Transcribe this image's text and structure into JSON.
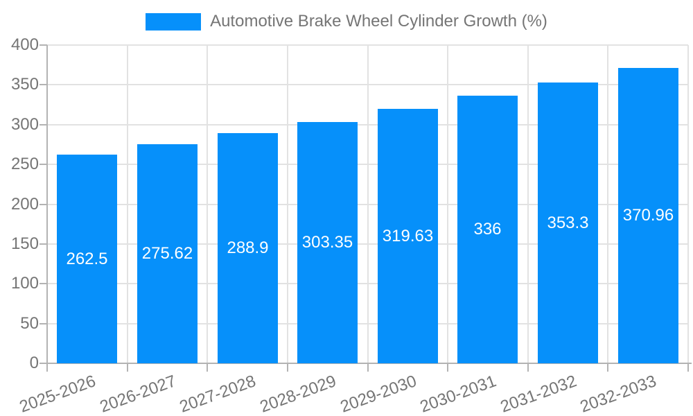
{
  "legend": {
    "label": "Automotive Brake Wheel Cylinder Growth (%)"
  },
  "chart_data": {
    "type": "bar",
    "title": "Automotive Brake Wheel Cylinder Growth (%)",
    "categories": [
      "2025-2026",
      "2026-2027",
      "2027-2028",
      "2028-2029",
      "2029-2030",
      "2030-2031",
      "2031-2032",
      "2032-2033"
    ],
    "values": [
      262.5,
      275.62,
      288.9,
      303.35,
      319.63,
      336,
      353.3,
      370.96
    ],
    "xlabel": "",
    "ylabel": "",
    "ylim": [
      0,
      400
    ],
    "ytick_step": 50,
    "yticks": [
      0,
      50,
      100,
      150,
      200,
      250,
      300,
      350,
      400
    ],
    "grid": true,
    "legend_position": "top-center",
    "value_label_style": "inside-center",
    "colors": {
      "bar": "#0690fa",
      "value_text": "#ffffff",
      "axis_text": "#757575",
      "grid_line": "#e2e2e2",
      "axis_line": "#b3b3b3"
    }
  }
}
